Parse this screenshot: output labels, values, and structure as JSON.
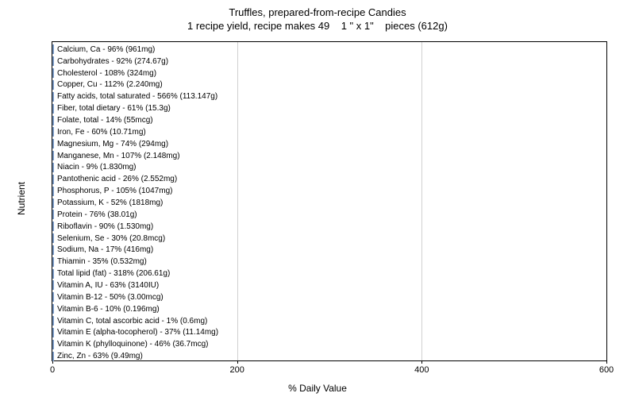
{
  "chart": {
    "type": "bar-horizontal",
    "title_line1": "Truffles, prepared-from-recipe Candies",
    "title_line2": "1 recipe yield, recipe makes 49    1 \" x 1\"    pieces (612g)",
    "title_fontsize": 13,
    "y_axis_label": "Nutrient",
    "x_axis_label": "% Daily Value",
    "label_fontsize": 12,
    "xlim": [
      0,
      600
    ],
    "x_ticks": [
      0,
      200,
      400,
      600
    ],
    "bar_color": "#b9cde5",
    "bar_border_color": "#7a99c4",
    "background_color": "#ffffff",
    "grid_color": "#d0d0d0",
    "bar_label_fontsize": 10,
    "nutrients": [
      {
        "label": "Calcium, Ca - 96% (961mg)",
        "value": 96
      },
      {
        "label": "Carbohydrates - 92% (274.67g)",
        "value": 92
      },
      {
        "label": "Cholesterol - 108% (324mg)",
        "value": 108
      },
      {
        "label": "Copper, Cu - 112% (2.240mg)",
        "value": 112
      },
      {
        "label": "Fatty acids, total saturated - 566% (113.147g)",
        "value": 566
      },
      {
        "label": "Fiber, total dietary - 61% (15.3g)",
        "value": 61
      },
      {
        "label": "Folate, total - 14% (55mcg)",
        "value": 14
      },
      {
        "label": "Iron, Fe - 60% (10.71mg)",
        "value": 60
      },
      {
        "label": "Magnesium, Mg - 74% (294mg)",
        "value": 74
      },
      {
        "label": "Manganese, Mn - 107% (2.148mg)",
        "value": 107
      },
      {
        "label": "Niacin - 9% (1.830mg)",
        "value": 9
      },
      {
        "label": "Pantothenic acid - 26% (2.552mg)",
        "value": 26
      },
      {
        "label": "Phosphorus, P - 105% (1047mg)",
        "value": 105
      },
      {
        "label": "Potassium, K - 52% (1818mg)",
        "value": 52
      },
      {
        "label": "Protein - 76% (38.01g)",
        "value": 76
      },
      {
        "label": "Riboflavin - 90% (1.530mg)",
        "value": 90
      },
      {
        "label": "Selenium, Se - 30% (20.8mcg)",
        "value": 30
      },
      {
        "label": "Sodium, Na - 17% (416mg)",
        "value": 17
      },
      {
        "label": "Thiamin - 35% (0.532mg)",
        "value": 35
      },
      {
        "label": "Total lipid (fat) - 318% (206.61g)",
        "value": 318
      },
      {
        "label": "Vitamin A, IU - 63% (3140IU)",
        "value": 63
      },
      {
        "label": "Vitamin B-12 - 50% (3.00mcg)",
        "value": 50
      },
      {
        "label": "Vitamin B-6 - 10% (0.196mg)",
        "value": 10
      },
      {
        "label": "Vitamin C, total ascorbic acid - 1% (0.6mg)",
        "value": 1
      },
      {
        "label": "Vitamin E (alpha-tocopherol) - 37% (11.14mg)",
        "value": 37
      },
      {
        "label": "Vitamin K (phylloquinone) - 46% (36.7mcg)",
        "value": 46
      },
      {
        "label": "Zinc, Zn - 63% (9.49mg)",
        "value": 63
      }
    ]
  }
}
